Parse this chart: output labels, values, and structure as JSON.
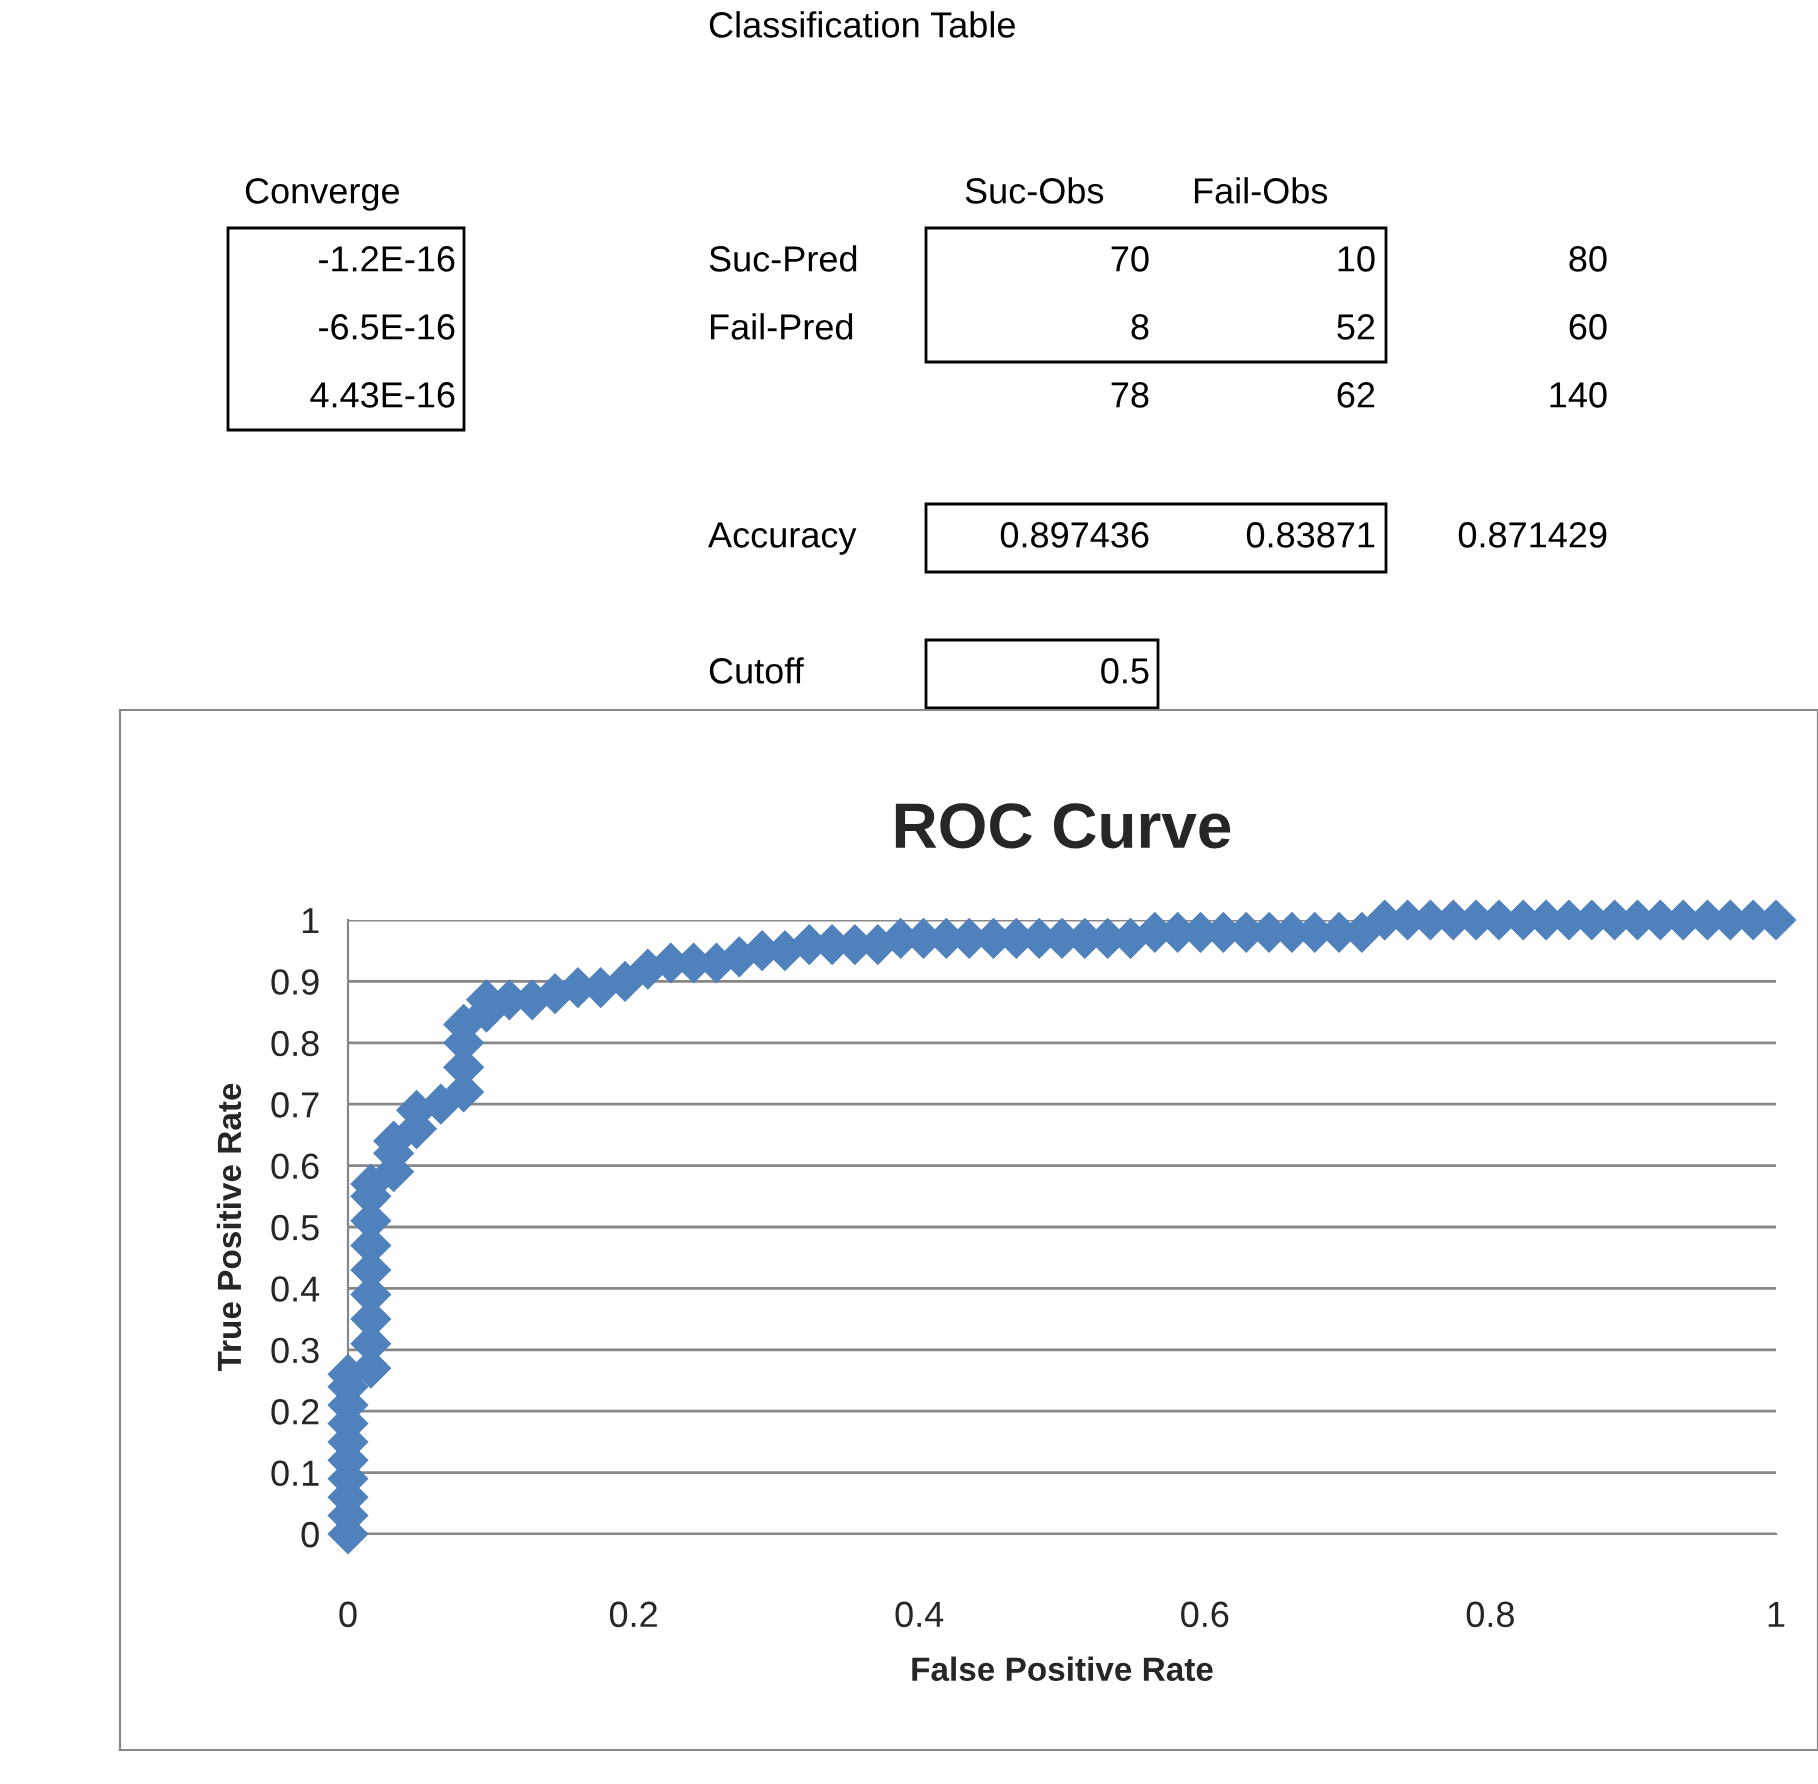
{
  "chart_data": [
    {
      "type": "other",
      "annotations": [
        "Classification Table",
        "Converge",
        "Suc-Obs",
        "Fail-Obs",
        "-1.2E-16",
        "Suc-Pred",
        "70",
        "10",
        "80",
        "-6.5E-16",
        "Fail-Pred",
        "8",
        "52",
        "60",
        "4.43E-16",
        "78",
        "62",
        "140",
        "Accuracy",
        "0.897436",
        "0.83871",
        "0.871429",
        "Cutoff",
        "0.5"
      ]
    },
    {
      "type": "scatter",
      "title": "ROC Curve",
      "xlabel": "False Positive Rate",
      "ylabel": "True Positive Rate",
      "marker": "diamond",
      "grid": "y",
      "xlim": [
        0,
        1
      ],
      "xticks": [
        0,
        0.2,
        0.4,
        0.6,
        0.8,
        1
      ],
      "ylim": [
        0,
        1
      ],
      "yticks": [
        0,
        0.1,
        0.2,
        0.3,
        0.4,
        0.5,
        0.6,
        0.7,
        0.8,
        0.9,
        1
      ],
      "series": [
        {
          "color": "#4f81bd",
          "x": [
            0,
            0,
            0,
            0,
            0,
            0,
            0,
            0,
            0,
            0,
            0.016,
            0.016,
            0.016,
            0.016,
            0.016,
            0.016,
            0.016,
            0.016,
            0.016,
            0.032,
            0.032,
            0.032,
            0.048,
            0.048,
            0.065,
            0.081,
            0.081,
            0.081,
            0.081,
            0.097,
            0.097,
            0.113,
            0.129,
            0.145,
            0.161,
            0.177,
            0.194,
            0.21,
            0.226,
            0.242,
            0.258,
            0.274,
            0.29,
            0.306,
            0.323,
            0.339,
            0.355,
            0.371,
            0.387,
            0.403,
            0.419,
            0.435,
            0.452,
            0.468,
            0.484,
            0.5,
            0.516,
            0.532,
            0.548,
            0.565,
            0.581,
            0.597,
            0.613,
            0.629,
            0.645,
            0.661,
            0.677,
            0.694,
            0.71,
            0.726,
            0.742,
            0.758,
            0.774,
            0.79,
            0.806,
            0.823,
            0.839,
            0.855,
            0.871,
            0.887,
            0.903,
            0.919,
            0.935,
            0.952,
            0.968,
            0.984,
            1
          ],
          "values": [
            0,
            0.03,
            0.06,
            0.09,
            0.12,
            0.15,
            0.18,
            0.21,
            0.24,
            0.26,
            0.27,
            0.31,
            0.35,
            0.39,
            0.43,
            0.47,
            0.51,
            0.55,
            0.57,
            0.59,
            0.62,
            0.64,
            0.66,
            0.69,
            0.7,
            0.72,
            0.76,
            0.8,
            0.83,
            0.85,
            0.87,
            0.87,
            0.87,
            0.88,
            0.89,
            0.89,
            0.9,
            0.92,
            0.93,
            0.93,
            0.93,
            0.94,
            0.95,
            0.95,
            0.96,
            0.96,
            0.96,
            0.96,
            0.97,
            0.97,
            0.97,
            0.97,
            0.97,
            0.97,
            0.97,
            0.97,
            0.97,
            0.97,
            0.97,
            0.98,
            0.98,
            0.98,
            0.98,
            0.98,
            0.98,
            0.98,
            0.98,
            0.98,
            0.98,
            1,
            1,
            1,
            1,
            1,
            1,
            1,
            1,
            1,
            1,
            1,
            1,
            1,
            1,
            1,
            1,
            1,
            1
          ]
        }
      ]
    }
  ]
}
